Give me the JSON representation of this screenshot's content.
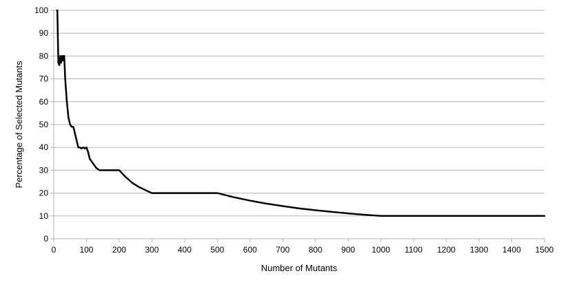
{
  "chart_data": {
    "type": "line",
    "title": "",
    "xlabel": "Number of Mutants",
    "ylabel": "Percentage of Selected Mutants",
    "xlim": [
      0,
      1500
    ],
    "ylim": [
      0,
      100
    ],
    "x_ticks": [
      0,
      100,
      200,
      300,
      400,
      500,
      600,
      700,
      800,
      900,
      1000,
      1100,
      1200,
      1300,
      1400,
      1500
    ],
    "y_ticks": [
      0,
      10,
      20,
      30,
      40,
      50,
      60,
      70,
      80,
      90,
      100
    ],
    "grid": "horizontal",
    "legend": "none",
    "line_color": "#000000",
    "grid_color": "#b3b3b3",
    "series": [
      {
        "x": [
          10,
          11,
          14,
          17,
          20,
          22,
          25,
          27,
          29,
          32,
          35,
          40,
          45,
          50,
          55,
          60,
          65,
          70,
          75,
          80,
          85,
          90,
          95,
          100,
          105,
          110,
          120,
          130,
          140,
          150,
          160,
          170,
          180,
          190,
          200,
          220,
          240,
          260,
          280,
          300,
          320,
          350,
          400,
          450,
          500,
          550,
          600,
          650,
          700,
          750,
          800,
          850,
          900,
          950,
          1000,
          1100,
          1200,
          1300,
          1400,
          1500
        ],
        "y": [
          100,
          100,
          77,
          76,
          80,
          77,
          80,
          78,
          80,
          80,
          70,
          60,
          53,
          50,
          49,
          49,
          46,
          43,
          40,
          40,
          39.5,
          40,
          39.5,
          40,
          38,
          35,
          33,
          31,
          30,
          30,
          30,
          30,
          30,
          30,
          30,
          27,
          24.5,
          22.7,
          21.3,
          20,
          20,
          20,
          20,
          20,
          20,
          18.2,
          16.7,
          15.4,
          14.3,
          13.3,
          12.5,
          11.8,
          11.1,
          10.5,
          10,
          10,
          10,
          10,
          10,
          10
        ]
      }
    ]
  }
}
